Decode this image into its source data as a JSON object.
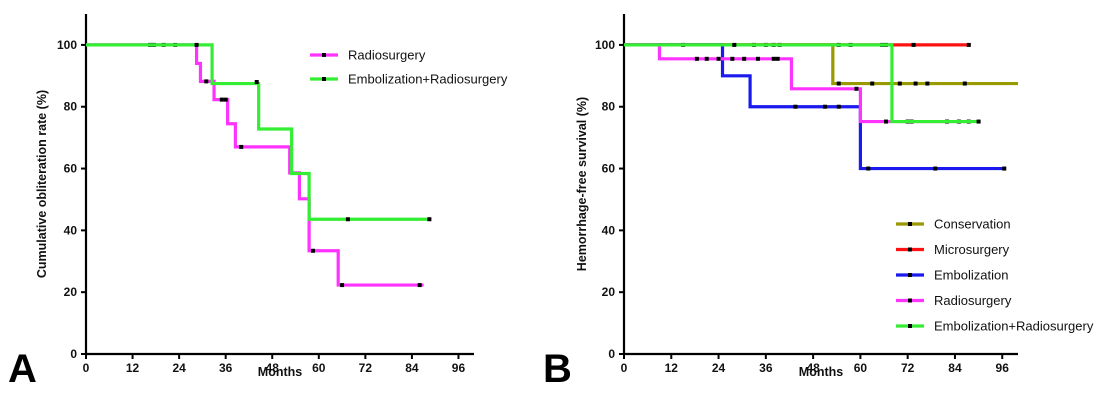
{
  "chart_data": [
    {
      "panel": "A",
      "type": "line",
      "step": true,
      "xlabel": "Months",
      "ylabel": "Cumulative obliteration rate (%)",
      "xlim": [
        0,
        100
      ],
      "ylim": [
        0,
        110
      ],
      "xticks": [
        0,
        12,
        24,
        36,
        48,
        60,
        72,
        84,
        96
      ],
      "yticks": [
        0,
        20,
        40,
        60,
        80,
        100
      ],
      "grid": false,
      "legend": "top-right",
      "series": [
        {
          "name": "Radiosurgery",
          "color": "#ff33ff",
          "steps": [
            [
              0,
              100
            ],
            [
              28.5,
              94
            ],
            [
              29.5,
              88.2
            ],
            [
              33,
              82.3
            ],
            [
              36.5,
              74.5
            ],
            [
              38.5,
              67
            ],
            [
              52.5,
              58.6
            ],
            [
              55,
              50.2
            ],
            [
              57.5,
              33.4
            ],
            [
              65,
              22.3
            ],
            [
              87,
              22.3
            ]
          ],
          "censored": [
            [
              16.5,
              100
            ],
            [
              17.5,
              100
            ],
            [
              20,
              100
            ],
            [
              23,
              100
            ],
            [
              31,
              88.2
            ],
            [
              35,
              82.3
            ],
            [
              36,
              82.3
            ],
            [
              40,
              67
            ],
            [
              58.5,
              33.4
            ],
            [
              66,
              22.3
            ],
            [
              86,
              22.3
            ]
          ]
        },
        {
          "name": "Embolization+Radiosurgery",
          "color": "#33ee33",
          "steps": [
            [
              0,
              100
            ],
            [
              32.5,
              87.5
            ],
            [
              44.5,
              72.8
            ],
            [
              53,
              58.4
            ],
            [
              57.5,
              43.6
            ],
            [
              89,
              43.6
            ]
          ],
          "censored": [
            [
              28.5,
              100
            ],
            [
              44,
              88
            ],
            [
              67.5,
              43.6
            ],
            [
              88.5,
              43.6
            ]
          ]
        }
      ]
    },
    {
      "panel": "B",
      "type": "line",
      "step": true,
      "xlabel": "Months",
      "ylabel": "Hemorrhage-free survival (%)",
      "xlim": [
        0,
        100
      ],
      "ylim": [
        0,
        110
      ],
      "xticks": [
        0,
        12,
        24,
        36,
        48,
        60,
        72,
        84,
        96
      ],
      "yticks": [
        0,
        20,
        40,
        60,
        80,
        100
      ],
      "grid": false,
      "legend": "bottom-right",
      "series": [
        {
          "name": "Conservation",
          "color": "#999900",
          "steps": [
            [
              0,
              100
            ],
            [
              53,
              87.5
            ],
            [
              100,
              87.5
            ]
          ],
          "censored": [
            [
              15,
              100
            ],
            [
              33,
              100
            ],
            [
              36,
              100
            ],
            [
              38,
              100
            ],
            [
              39.5,
              100
            ],
            [
              54.5,
              87.5
            ],
            [
              63,
              87.5
            ],
            [
              70,
              87.5
            ],
            [
              74,
              87.5
            ],
            [
              77,
              87.5
            ],
            [
              86.5,
              87.5
            ]
          ]
        },
        {
          "name": "Microsurgery",
          "color": "#ff1111",
          "steps": [
            [
              0,
              100
            ],
            [
              88,
              100
            ]
          ],
          "censored": [
            [
              54.5,
              100
            ],
            [
              57.5,
              100
            ],
            [
              65.5,
              100
            ],
            [
              66.5,
              100
            ],
            [
              73.5,
              100
            ],
            [
              87.5,
              100
            ]
          ]
        },
        {
          "name": "Embolization",
          "color": "#1a1aee",
          "steps": [
            [
              0,
              100
            ],
            [
              25,
              90
            ],
            [
              32,
              80
            ],
            [
              60,
              60
            ],
            [
              97,
              60
            ]
          ],
          "censored": [
            [
              43.5,
              80
            ],
            [
              51,
              80
            ],
            [
              54.5,
              80
            ],
            [
              62,
              60
            ],
            [
              79,
              60
            ],
            [
              96.5,
              60
            ]
          ]
        },
        {
          "name": "Radiosurgery",
          "color": "#ff33ff",
          "steps": [
            [
              0,
              100
            ],
            [
              9,
              95.5
            ],
            [
              42.5,
              85.8
            ],
            [
              60,
              75.2
            ],
            [
              88,
              75.2
            ]
          ],
          "censored": [
            [
              18.5,
              95.5
            ],
            [
              21,
              95.5
            ],
            [
              24,
              95.5
            ],
            [
              27.5,
              95.5
            ],
            [
              30.5,
              95.5
            ],
            [
              34,
              95.5
            ],
            [
              38,
              95.5
            ],
            [
              39,
              95.5
            ],
            [
              59,
              85.8
            ],
            [
              66.5,
              75.2
            ],
            [
              72,
              75.2
            ],
            [
              73,
              75.2
            ],
            [
              82,
              75.2
            ],
            [
              85,
              75.2
            ],
            [
              87.5,
              75.2
            ]
          ]
        },
        {
          "name": "Embolization+Radiosurgery",
          "color": "#33ee33",
          "steps": [
            [
              0,
              100
            ],
            [
              68,
              75.2
            ],
            [
              90.5,
              75.2
            ]
          ],
          "censored": [
            [
              28,
              100
            ],
            [
              90,
              75.2
            ]
          ]
        }
      ]
    }
  ]
}
